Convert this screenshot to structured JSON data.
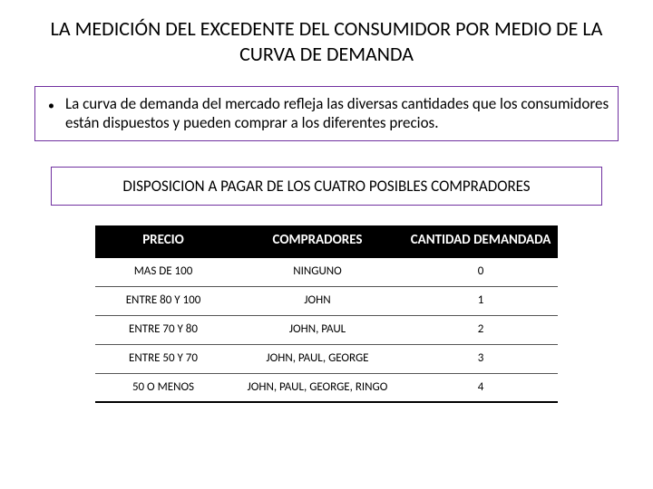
{
  "title": "LA MEDICIÓN DEL EXCEDENTE DEL CONSUMIDOR POR MEDIO DE LA CURVA DE DEMANDA",
  "bullet": "La curva de demanda del mercado refleja las diversas cantidades que los consumidores están dispuestos y pueden comprar a los diferentes precios.",
  "subtitle": "DISPOSICION A PAGAR  DE LOS CUATRO POSIBLES COMPRADORES",
  "table": {
    "headers": [
      "PRECIO",
      "COMPRADORES",
      "CANTIDAD DEMANDADA"
    ],
    "rows": [
      [
        "MAS DE 100",
        "NINGUNO",
        "0"
      ],
      [
        "ENTRE 80 Y 100",
        "JOHN",
        "1"
      ],
      [
        "ENTRE 70 Y 80",
        "JOHN, PAUL",
        "2"
      ],
      [
        "ENTRE 50 Y 70",
        "JOHN, PAUL, GEORGE",
        "3"
      ],
      [
        "50 O MENOS",
        "JOHN, PAUL, GEORGE, RINGO",
        "4"
      ]
    ]
  },
  "colors": {
    "box_border": "#7030a0",
    "th_bg": "#000000",
    "th_fg": "#ffffff"
  }
}
